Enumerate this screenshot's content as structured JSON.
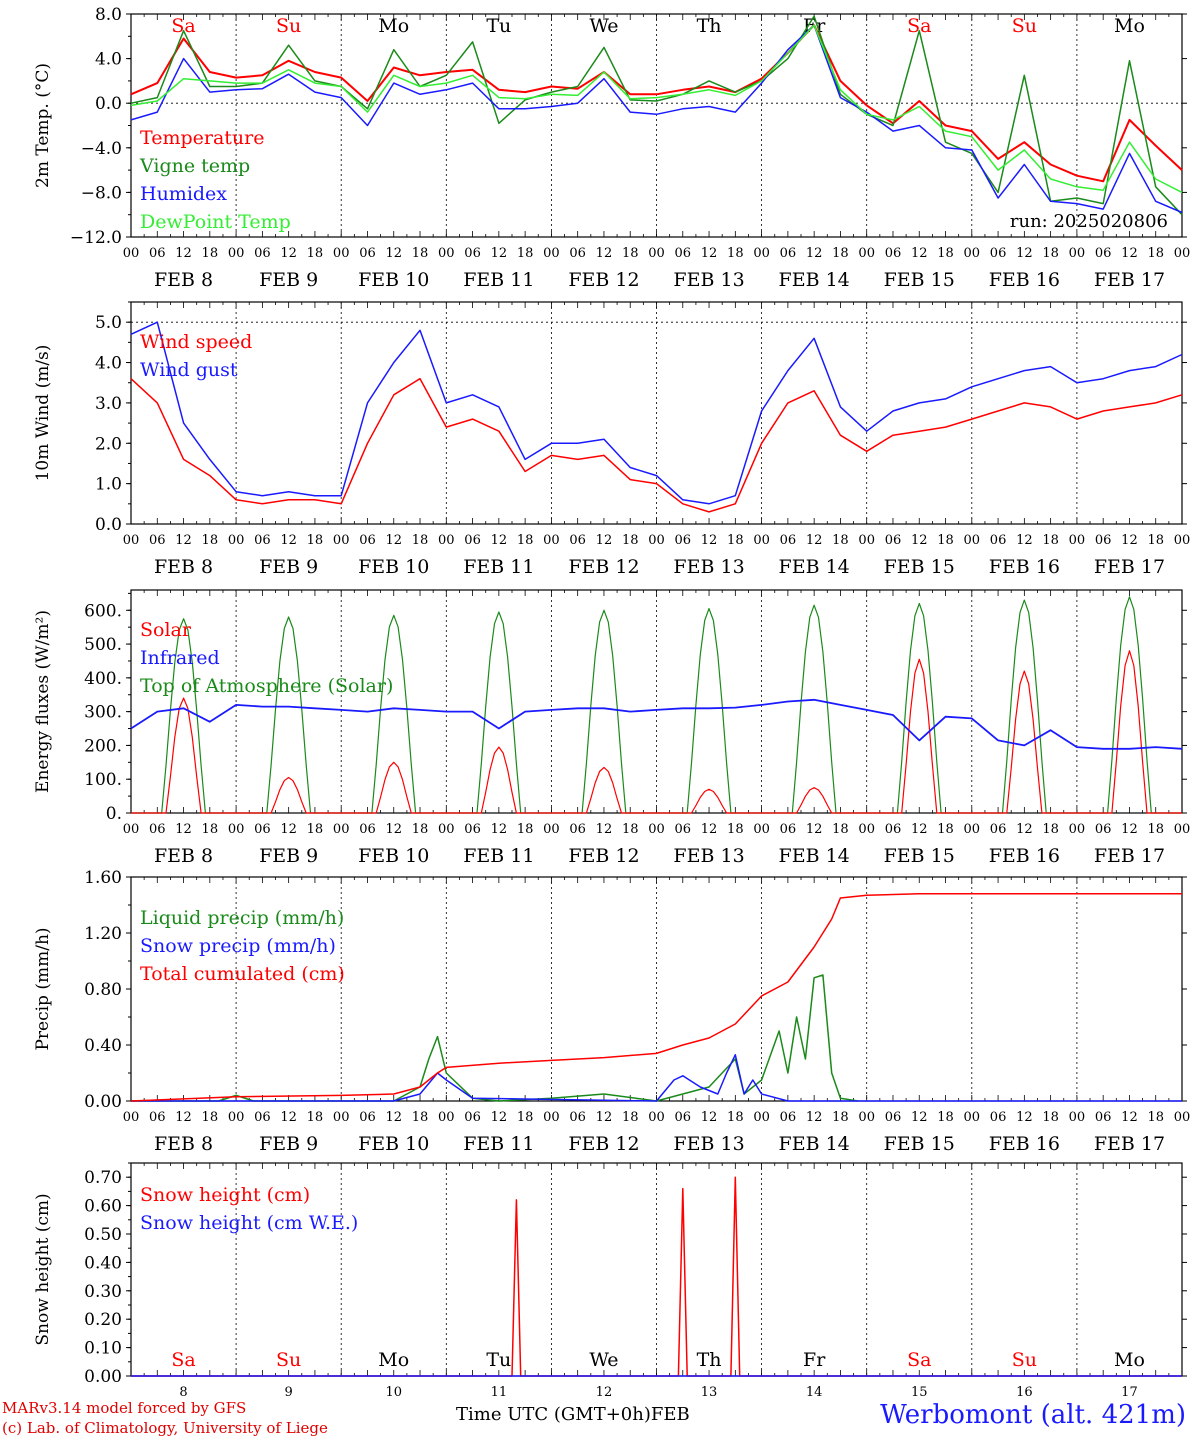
{
  "colors": {
    "red": "#ff0000",
    "green": "#1a8a1a",
    "blue": "#1a1aff",
    "lightgreen": "#33ee33",
    "axis": "#000000"
  },
  "x_axis": {
    "hour_ticks": [
      "00",
      "06",
      "12",
      "18"
    ],
    "dates": [
      "FEB  8",
      "FEB  9",
      "FEB 10",
      "FEB 11",
      "FEB 12",
      "FEB 13",
      "FEB 14",
      "FEB 15",
      "FEB 16",
      "FEB 17"
    ],
    "weekdays": [
      "Sa",
      "Su",
      "Mo",
      "Tu",
      "We",
      "Th",
      "Fr",
      "Sa",
      "Su",
      "Mo"
    ],
    "weekday_colors": [
      "red",
      "red",
      "black",
      "black",
      "black",
      "black",
      "black",
      "red",
      "red",
      "black"
    ],
    "day_numbers": [
      "8",
      "9",
      "10",
      "11",
      "12",
      "13",
      "14",
      "15",
      "16",
      "17"
    ],
    "unit_label": "FEB",
    "time_label": "Time UTC (GMT+0h)"
  },
  "footer": {
    "model_line": "MARv3.14 model forced by GFS",
    "copyright_line": "(c) Lab. of Climatology, University of Liege",
    "station": "Werbomont (alt. 421m)"
  },
  "chart_data": [
    {
      "type": "line",
      "ylabel": "2m Temp. (°C)",
      "ylim": [
        -12,
        8
      ],
      "yticks": [
        "8.0",
        "4.0",
        "0.0",
        "−4.0",
        "−8.0",
        "−12.0"
      ],
      "ytick_values": [
        8,
        4,
        0,
        -4,
        -8,
        -12
      ],
      "run_label": "run: 2025020806",
      "x": [
        0,
        6,
        12,
        18,
        24,
        30,
        36,
        42,
        48,
        54,
        60,
        66,
        72,
        78,
        84,
        90,
        96,
        102,
        108,
        114,
        120,
        126,
        132,
        138,
        144,
        150,
        156,
        162,
        168,
        174,
        180,
        186,
        192,
        198,
        204,
        210,
        216,
        222,
        228,
        234,
        240
      ],
      "series": [
        {
          "name": "Temperature",
          "color": "red",
          "values": [
            0.8,
            1.8,
            5.8,
            2.8,
            2.3,
            2.5,
            3.8,
            2.8,
            2.3,
            0.2,
            3.2,
            2.5,
            2.8,
            3.0,
            1.2,
            1.0,
            1.5,
            1.3,
            2.8,
            0.8,
            0.8,
            1.2,
            1.5,
            1.0,
            2.2,
            4.5,
            7.0,
            2.0,
            -0.2,
            -1.8,
            0.2,
            -2.0,
            -2.5,
            -5.0,
            -3.5,
            -5.5,
            -6.5,
            -7.0,
            -1.5,
            -3.8,
            -6.0
          ]
        },
        {
          "name": "Vigne temp",
          "color": "green",
          "values": [
            0.0,
            0.5,
            6.5,
            1.5,
            1.5,
            1.8,
            5.2,
            2.0,
            1.5,
            -0.5,
            4.8,
            1.5,
            2.5,
            5.5,
            -1.8,
            0.3,
            1.0,
            1.5,
            5.0,
            0.3,
            0.2,
            0.8,
            2.0,
            1.0,
            2.0,
            4.0,
            7.8,
            0.8,
            -1.0,
            -2.0,
            6.5,
            -3.5,
            -4.5,
            -8.0,
            2.5,
            -8.8,
            -8.5,
            -9.0,
            3.8,
            -7.5,
            -10.0
          ]
        },
        {
          "name": "Humidex",
          "color": "blue",
          "values": [
            -1.5,
            -0.8,
            4.0,
            1.0,
            1.2,
            1.3,
            2.6,
            1.0,
            0.5,
            -2.0,
            1.8,
            0.8,
            1.2,
            1.8,
            -0.5,
            -0.5,
            -0.3,
            0.0,
            2.2,
            -0.8,
            -1.0,
            -0.5,
            -0.3,
            -0.8,
            1.8,
            4.8,
            7.0,
            0.5,
            -0.8,
            -2.5,
            -2.0,
            -4.0,
            -4.2,
            -8.5,
            -5.5,
            -8.8,
            -9.0,
            -9.5,
            -4.5,
            -8.8,
            -9.8
          ]
        },
        {
          "name": "DewPoint Temp",
          "color": "lightgreen",
          "values": [
            -0.2,
            0.2,
            2.2,
            2.0,
            1.8,
            1.8,
            3.0,
            1.8,
            1.5,
            -0.8,
            2.5,
            1.5,
            1.8,
            2.5,
            0.5,
            0.4,
            0.8,
            0.7,
            2.8,
            0.4,
            0.5,
            0.8,
            1.2,
            0.7,
            2.0,
            4.5,
            7.0,
            1.2,
            -1.0,
            -1.5,
            -0.3,
            -2.5,
            -3.0,
            -6.0,
            -4.2,
            -6.8,
            -7.5,
            -7.8,
            -3.5,
            -6.8,
            -8.0
          ]
        }
      ],
      "legend": [
        "Temperature",
        "Vigne temp",
        "Humidex",
        "DewPoint Temp"
      ],
      "legend_placement": "left",
      "grid": "vertical dotted at day boundaries; horizontal dotted at 8.0 and 0.0"
    },
    {
      "type": "line",
      "ylabel": "10m Wind (m/s)",
      "ylim": [
        0,
        5.5
      ],
      "yticks": [
        "5.0",
        "4.0",
        "3.0",
        "2.0",
        "1.0",
        "0.0"
      ],
      "ytick_values": [
        5,
        4,
        3,
        2,
        1,
        0
      ],
      "x": [
        0,
        6,
        12,
        18,
        24,
        30,
        36,
        42,
        48,
        54,
        60,
        66,
        72,
        78,
        84,
        90,
        96,
        102,
        108,
        114,
        120,
        126,
        132,
        138,
        144,
        150,
        156,
        162,
        168,
        174,
        180,
        186,
        192,
        198,
        204,
        210,
        216,
        222,
        228,
        234,
        240
      ],
      "series": [
        {
          "name": "Wind speed",
          "color": "red",
          "values": [
            3.6,
            3.0,
            1.6,
            1.2,
            0.6,
            0.5,
            0.6,
            0.6,
            0.5,
            2.0,
            3.2,
            3.6,
            2.4,
            2.6,
            2.3,
            1.3,
            1.7,
            1.6,
            1.7,
            1.1,
            1.0,
            0.5,
            0.3,
            0.5,
            2.0,
            3.0,
            3.3,
            2.2,
            1.8,
            2.2,
            2.3,
            2.4,
            2.6,
            2.8,
            3.0,
            2.9,
            2.6,
            2.8,
            2.9,
            3.0,
            3.2
          ]
        },
        {
          "name": "Wind gust",
          "color": "blue",
          "values": [
            4.7,
            5.0,
            2.5,
            1.6,
            0.8,
            0.7,
            0.8,
            0.7,
            0.7,
            3.0,
            4.0,
            4.8,
            3.0,
            3.2,
            2.9,
            1.6,
            2.0,
            2.0,
            2.1,
            1.4,
            1.2,
            0.6,
            0.5,
            0.7,
            2.8,
            3.8,
            4.6,
            2.9,
            2.3,
            2.8,
            3.0,
            3.1,
            3.4,
            3.6,
            3.8,
            3.9,
            3.5,
            3.6,
            3.8,
            3.9,
            4.2
          ]
        }
      ],
      "legend": [
        "Wind speed",
        "Wind gust"
      ],
      "grid": "vertical dotted at day boundaries; horizontal dotted at 5.0"
    },
    {
      "type": "line",
      "ylabel": "Energy fluxes (W/m²)",
      "ylim": [
        0,
        660
      ],
      "yticks": [
        "600.",
        "500.",
        "400.",
        "300.",
        "200.",
        "100.",
        "0."
      ],
      "ytick_values": [
        600,
        500,
        400,
        300,
        200,
        100,
        0
      ],
      "legend": [
        "Solar",
        "Infrared",
        "Top of Atmosphere (Solar)"
      ],
      "day_peaks": {
        "solar": [
          340,
          105,
          150,
          195,
          135,
          70,
          75,
          455,
          420,
          480
        ],
        "toa": [
          575,
          580,
          585,
          595,
          600,
          605,
          615,
          620,
          630,
          640
        ]
      },
      "infrared": {
        "x": [
          0,
          6,
          12,
          18,
          24,
          30,
          36,
          42,
          48,
          54,
          60,
          66,
          72,
          78,
          84,
          90,
          96,
          102,
          108,
          114,
          120,
          126,
          132,
          138,
          144,
          150,
          156,
          162,
          168,
          174,
          180,
          186,
          192,
          198,
          204,
          210,
          216,
          222,
          228,
          234,
          240
        ],
        "values": [
          250,
          300,
          310,
          270,
          320,
          315,
          315,
          310,
          305,
          300,
          310,
          305,
          300,
          300,
          250,
          300,
          305,
          310,
          310,
          300,
          305,
          310,
          310,
          312,
          320,
          330,
          335,
          320,
          305,
          290,
          215,
          285,
          280,
          215,
          200,
          245,
          195,
          190,
          190,
          195,
          190
        ]
      },
      "grid": "vertical dotted at day boundaries"
    },
    {
      "type": "line",
      "ylabel": "Precip (mm/h)",
      "ylim": [
        0,
        1.6
      ],
      "yticks": [
        "1.60",
        "1.20",
        "0.80",
        "0.40",
        "0.00"
      ],
      "ytick_values": [
        1.6,
        1.2,
        0.8,
        0.4,
        0
      ],
      "series": [
        {
          "name": "Liquid precip (mm/h)",
          "color": "green",
          "x": [
            0,
            20,
            24,
            28,
            60,
            66,
            68,
            70,
            72,
            78,
            84,
            96,
            108,
            120,
            126,
            132,
            138,
            140,
            144,
            148,
            150,
            152,
            154,
            156,
            158,
            160,
            162,
            166
          ],
          "values": [
            0,
            0,
            0.04,
            0,
            0,
            0.1,
            0.3,
            0.46,
            0.2,
            0.02,
            0,
            0.02,
            0.05,
            0,
            0.05,
            0.1,
            0.3,
            0.05,
            0.15,
            0.5,
            0.2,
            0.6,
            0.3,
            0.88,
            0.9,
            0.2,
            0.02,
            0
          ]
        },
        {
          "name": "Snow precip (mm/h)",
          "color": "blue",
          "x": [
            0,
            60,
            66,
            70,
            72,
            78,
            120,
            124,
            126,
            130,
            134,
            136,
            138,
            140,
            142,
            144,
            150,
            240
          ],
          "values": [
            0,
            0,
            0.05,
            0.2,
            0.15,
            0.02,
            0,
            0.15,
            0.18,
            0.1,
            0.05,
            0.2,
            0.33,
            0.05,
            0.15,
            0.05,
            0,
            0
          ]
        },
        {
          "name": "Total cumulated (cm)",
          "color": "red",
          "x": [
            0,
            24,
            48,
            60,
            66,
            70,
            72,
            84,
            96,
            108,
            120,
            126,
            132,
            138,
            144,
            150,
            156,
            160,
            162,
            168,
            180,
            240
          ],
          "values": [
            0,
            0.03,
            0.04,
            0.05,
            0.1,
            0.2,
            0.24,
            0.27,
            0.29,
            0.31,
            0.34,
            0.4,
            0.45,
            0.55,
            0.75,
            0.85,
            1.1,
            1.3,
            1.45,
            1.47,
            1.48,
            1.48
          ]
        }
      ],
      "legend": [
        "Liquid precip (mm/h)",
        "Snow precip (mm/h)",
        "Total cumulated (cm)"
      ],
      "grid": "vertical dotted at day boundaries; horizontal dotted at 1.60"
    },
    {
      "type": "line",
      "ylabel": "Snow height (cm)",
      "ylim": [
        0,
        0.75
      ],
      "yticks": [
        "0.70",
        "0.60",
        "0.50",
        "0.40",
        "0.30",
        "0.20",
        "0.10",
        "0.00"
      ],
      "ytick_values": [
        0.7,
        0.6,
        0.5,
        0.4,
        0.3,
        0.2,
        0.1,
        0
      ],
      "series": [
        {
          "name": "Snow height (cm)",
          "color": "red",
          "x": [
            0,
            87,
            88,
            89,
            125,
            126,
            127,
            137,
            138,
            139,
            240
          ],
          "values": [
            0,
            0,
            0.62,
            0,
            0,
            0.66,
            0,
            0,
            0.7,
            0,
            0
          ]
        },
        {
          "name": "Snow height (cm W.E.)",
          "color": "blue",
          "x": [
            0,
            240
          ],
          "values": [
            0,
            0
          ]
        }
      ],
      "legend": [
        "Snow height (cm)",
        "Snow height (cm W.E.)"
      ],
      "grid": "vertical dotted at day boundaries"
    }
  ]
}
